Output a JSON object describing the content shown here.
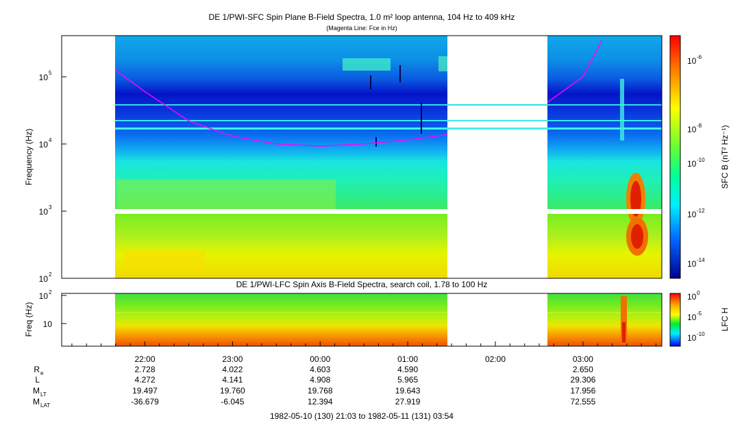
{
  "top_panel": {
    "title": "DE 1/PWI-SFC  Spin Plane B-Field Spectra, 1.0 m² loop antenna, 104 Hz to 409 kHz",
    "subtitle": "(Magenta Line: Fce in Hz)",
    "ylabel": "Frequency (Hz)",
    "colorbar_label": "SFC B (nT² Hz⁻¹)"
  },
  "bottom_panel": {
    "title": "DE 1/PWI-LFC  Spin Axis B-Field Spectra, search coil, 1.78 to 100 Hz",
    "ylabel": "Freq (Hz)",
    "colorbar_label": "LFC H"
  },
  "ephemeris": {
    "row_labels": [
      {
        "main": "R",
        "sub": "e"
      },
      {
        "main": "L",
        "sub": ""
      },
      {
        "main": "M",
        "sub": "LT"
      },
      {
        "main": "M",
        "sub": "LAT"
      }
    ],
    "columns": [
      {
        "time": "22:00",
        "values": [
          "2.728",
          "4.272",
          "19.497",
          "-36.679"
        ]
      },
      {
        "time": "23:00",
        "values": [
          "4.022",
          "4.141",
          "19.760",
          "-6.045"
        ]
      },
      {
        "time": "00:00",
        "values": [
          "4.603",
          "4.908",
          "19.768",
          "12.394"
        ]
      },
      {
        "time": "01:00",
        "values": [
          "4.590",
          "5.965",
          "19.643",
          "27.919"
        ]
      },
      {
        "time": "02:00",
        "values": [
          "",
          "",
          "",
          ""
        ]
      },
      {
        "time": "03:00",
        "values": [
          "2.650",
          "29.306",
          "17.956",
          "72.555"
        ]
      }
    ],
    "date_range": "1982-05-10 (130) 21:03 to 1982-05-11 (131) 03:54"
  },
  "chart_data": [
    {
      "type": "heatmap",
      "title": "DE 1/PWI-SFC  Spin Plane B-Field Spectra, 1.0 m² loop antenna, 104 Hz to 409 kHz",
      "xlabel": "",
      "ylabel": "Frequency (Hz)",
      "x_range": [
        "21:03",
        "03:54"
      ],
      "y_scale": "log",
      "y_range": [
        100,
        409000
      ],
      "y_ticks": [
        "10^2",
        "10^3",
        "10^4",
        "10^5"
      ],
      "data_gaps": [
        [
          "21:03",
          "21:38"
        ],
        [
          "01:28",
          "02:36"
        ]
      ],
      "colorbar": {
        "scale": "log",
        "range": [
          3e-15,
          1e-05
        ],
        "ticks": [
          "10^-6",
          "10^-8",
          "10^-10",
          "10^-12",
          "10^-14"
        ],
        "colormap": [
          "#00007f",
          "#0000ff",
          "#0080ff",
          "#00ffff",
          "#00ff80",
          "#80ff00",
          "#ffff00",
          "#ff8000",
          "#ff0000"
        ]
      },
      "overlay_line": {
        "name": "Fce",
        "color": "#ff00ff",
        "points": [
          {
            "x": "21:40",
            "y": 125000
          },
          {
            "x": "22:00",
            "y": 60000
          },
          {
            "x": "22:30",
            "y": 22000
          },
          {
            "x": "23:00",
            "y": 13000
          },
          {
            "x": "23:30",
            "y": 10000
          },
          {
            "x": "00:00",
            "y": 9300
          },
          {
            "x": "00:30",
            "y": 10000
          },
          {
            "x": "01:00",
            "y": 11500
          },
          {
            "x": "01:27",
            "y": 13800
          },
          {
            "x": "02:36",
            "y": 42000
          },
          {
            "x": "03:00",
            "y": 100000
          },
          {
            "x": "03:13",
            "y": 350000
          }
        ]
      }
    },
    {
      "type": "heatmap",
      "title": "DE 1/PWI-LFC  Spin Axis B-Field Spectra, search coil, 1.78 to 100 Hz",
      "ylabel": "Freq (Hz)",
      "x_range": [
        "21:03",
        "03:54"
      ],
      "y_scale": "log",
      "y_range": [
        1.78,
        100
      ],
      "y_ticks": [
        "10",
        "10^2"
      ],
      "colorbar": {
        "scale": "log",
        "range": [
          1e-12,
          1
        ],
        "ticks": [
          "10^0",
          "10^-5",
          "10^-10"
        ],
        "colormap": [
          "#0000ff",
          "#00ffff",
          "#00ff00",
          "#ffff00",
          "#ff8000",
          "#ff0000"
        ]
      }
    }
  ]
}
